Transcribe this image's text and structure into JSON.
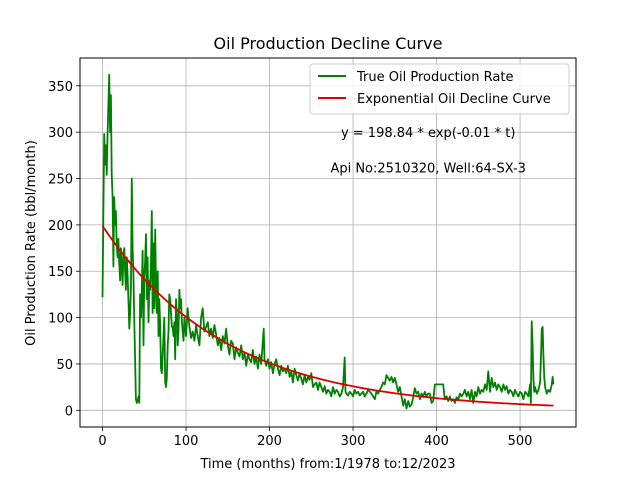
{
  "chart_data": {
    "type": "line",
    "title": "Oil Production Decline Curve",
    "xlabel": "Time (months) from:1/1978 to:12/2023",
    "ylabel": "Oil Production Rate (bbl/month)",
    "xlim": [
      -27,
      567
    ],
    "ylim": [
      -18,
      380
    ],
    "xticks": [
      0,
      100,
      200,
      300,
      400,
      500
    ],
    "yticks": [
      0,
      50,
      100,
      150,
      200,
      250,
      300,
      350
    ],
    "grid": true,
    "legend": "top-right",
    "annotations": [
      {
        "text": "y = 198.84 * exp(-0.01 * t)",
        "x": 390,
        "y": 300
      },
      {
        "text": "Api No:2510320, Well:64-SX-3",
        "x": 390,
        "y": 262
      }
    ],
    "series": [
      {
        "name": "True Oil Production Rate",
        "color": "#008000",
        "kind": "observed",
        "points": [
          [
            0,
            122
          ],
          [
            2,
            298
          ],
          [
            3,
            265
          ],
          [
            4,
            286
          ],
          [
            5,
            254
          ],
          [
            6,
            300
          ],
          [
            7,
            330
          ],
          [
            8,
            362
          ],
          [
            9,
            300
          ],
          [
            10,
            340
          ],
          [
            11,
            255
          ],
          [
            12,
            230
          ],
          [
            13,
            155
          ],
          [
            14,
            230
          ],
          [
            15,
            200
          ],
          [
            16,
            215
          ],
          [
            17,
            178
          ],
          [
            18,
            165
          ],
          [
            19,
            185
          ],
          [
            20,
            160
          ],
          [
            21,
            140
          ],
          [
            22,
            175
          ],
          [
            23,
            155
          ],
          [
            24,
            135
          ],
          [
            25,
            168
          ],
          [
            26,
            175
          ],
          [
            27,
            150
          ],
          [
            28,
            130
          ],
          [
            29,
            165
          ],
          [
            30,
            145
          ],
          [
            31,
            120
          ],
          [
            32,
            88
          ],
          [
            33,
            105
          ],
          [
            34,
            130
          ],
          [
            35,
            250
          ],
          [
            36,
            175
          ],
          [
            37,
            148
          ],
          [
            38,
            95
          ],
          [
            39,
            55
          ],
          [
            40,
            12
          ],
          [
            41,
            8
          ],
          [
            42,
            10
          ],
          [
            43,
            15
          ],
          [
            44,
            8
          ],
          [
            45,
            125
          ],
          [
            46,
            100
          ],
          [
            47,
            130
          ],
          [
            48,
            172
          ],
          [
            49,
            70
          ],
          [
            50,
            145
          ],
          [
            51,
            160
          ],
          [
            52,
            190
          ],
          [
            53,
            120
          ],
          [
            54,
            165
          ],
          [
            55,
            95
          ],
          [
            56,
            140
          ],
          [
            57,
            130
          ],
          [
            58,
            160
          ],
          [
            59,
            215
          ],
          [
            60,
            105
          ],
          [
            61,
            180
          ],
          [
            62,
            110
          ],
          [
            63,
            195
          ],
          [
            64,
            130
          ],
          [
            65,
            105
          ],
          [
            66,
            150
          ],
          [
            67,
            80
          ],
          [
            68,
            120
          ],
          [
            69,
            90
          ],
          [
            70,
            45
          ],
          [
            71,
            40
          ],
          [
            72,
            60
          ],
          [
            73,
            80
          ],
          [
            74,
            100
          ],
          [
            75,
            30
          ],
          [
            76,
            25
          ],
          [
            77,
            35
          ],
          [
            78,
            70
          ],
          [
            79,
            85
          ],
          [
            80,
            125
          ],
          [
            81,
            120
          ],
          [
            82,
            105
          ],
          [
            83,
            90
          ],
          [
            84,
            90
          ],
          [
            85,
            80
          ],
          [
            86,
            95
          ],
          [
            87,
            55
          ],
          [
            88,
            120
          ],
          [
            89,
            105
          ],
          [
            90,
            70
          ],
          [
            91,
            85
          ],
          [
            92,
            130
          ],
          [
            93,
            110
          ],
          [
            94,
            120
          ],
          [
            95,
            95
          ],
          [
            96,
            85
          ],
          [
            97,
            75
          ],
          [
            98,
            100
          ],
          [
            99,
            92
          ],
          [
            100,
            80
          ],
          [
            102,
            110
          ],
          [
            104,
            90
          ],
          [
            106,
            78
          ],
          [
            108,
            85
          ],
          [
            110,
            75
          ],
          [
            112,
            92
          ],
          [
            114,
            80
          ],
          [
            116,
            70
          ],
          [
            118,
            100
          ],
          [
            120,
            110
          ],
          [
            122,
            85
          ],
          [
            124,
            90
          ],
          [
            126,
            95
          ],
          [
            128,
            80
          ],
          [
            130,
            88
          ],
          [
            132,
            78
          ],
          [
            134,
            92
          ],
          [
            136,
            82
          ],
          [
            138,
            70
          ],
          [
            140,
            78
          ],
          [
            142,
            65
          ],
          [
            144,
            80
          ],
          [
            146,
            72
          ],
          [
            148,
            88
          ],
          [
            150,
            70
          ],
          [
            152,
            60
          ],
          [
            154,
            75
          ],
          [
            156,
            72
          ],
          [
            158,
            55
          ],
          [
            160,
            68
          ],
          [
            162,
            62
          ],
          [
            164,
            58
          ],
          [
            166,
            70
          ],
          [
            168,
            55
          ],
          [
            170,
            62
          ],
          [
            172,
            48
          ],
          [
            174,
            60
          ],
          [
            176,
            55
          ],
          [
            178,
            52
          ],
          [
            180,
            65
          ],
          [
            182,
            50
          ],
          [
            184,
            58
          ],
          [
            186,
            45
          ],
          [
            188,
            60
          ],
          [
            190,
            50
          ],
          [
            192,
            75
          ],
          [
            193,
            88
          ],
          [
            194,
            55
          ],
          [
            196,
            48
          ],
          [
            198,
            55
          ],
          [
            200,
            45
          ],
          [
            202,
            52
          ],
          [
            204,
            40
          ],
          [
            206,
            50
          ],
          [
            208,
            55
          ],
          [
            210,
            45
          ],
          [
            212,
            38
          ],
          [
            214,
            48
          ],
          [
            216,
            42
          ],
          [
            218,
            45
          ],
          [
            220,
            40
          ],
          [
            222,
            48
          ],
          [
            224,
            36
          ],
          [
            226,
            42
          ],
          [
            228,
            30
          ],
          [
            230,
            45
          ],
          [
            232,
            38
          ],
          [
            234,
            32
          ],
          [
            236,
            40
          ],
          [
            238,
            34
          ],
          [
            240,
            28
          ],
          [
            242,
            38
          ],
          [
            244,
            30
          ],
          [
            246,
            36
          ],
          [
            248,
            33
          ],
          [
            250,
            40
          ],
          [
            252,
            25
          ],
          [
            254,
            28
          ],
          [
            256,
            30
          ],
          [
            258,
            22
          ],
          [
            260,
            30
          ],
          [
            262,
            25
          ],
          [
            264,
            20
          ],
          [
            266,
            26
          ],
          [
            268,
            18
          ],
          [
            270,
            22
          ],
          [
            272,
            20
          ],
          [
            274,
            15
          ],
          [
            276,
            25
          ],
          [
            278,
            18
          ],
          [
            280,
            22
          ],
          [
            282,
            20
          ],
          [
            284,
            15
          ],
          [
            286,
            18
          ],
          [
            288,
            25
          ],
          [
            290,
            57
          ],
          [
            291,
            20
          ],
          [
            292,
            18
          ],
          [
            294,
            16
          ],
          [
            296,
            20
          ],
          [
            298,
            18
          ],
          [
            300,
            15
          ],
          [
            302,
            22
          ],
          [
            304,
            18
          ],
          [
            306,
            20
          ],
          [
            308,
            16
          ],
          [
            310,
            18
          ],
          [
            312,
            20
          ],
          [
            314,
            15
          ],
          [
            316,
            18
          ],
          [
            318,
            22
          ],
          [
            320,
            20
          ],
          [
            322,
            18
          ],
          [
            324,
            15
          ],
          [
            326,
            12
          ],
          [
            328,
            20
          ],
          [
            330,
            18
          ],
          [
            332,
            22
          ],
          [
            334,
            25
          ],
          [
            336,
            30
          ],
          [
            338,
            28
          ],
          [
            340,
            38
          ],
          [
            342,
            35
          ],
          [
            344,
            32
          ],
          [
            346,
            36
          ],
          [
            348,
            30
          ],
          [
            350,
            35
          ],
          [
            352,
            28
          ],
          [
            354,
            20
          ],
          [
            356,
            25
          ],
          [
            358,
            15
          ],
          [
            360,
            5
          ],
          [
            362,
            12
          ],
          [
            364,
            2
          ],
          [
            366,
            10
          ],
          [
            368,
            4
          ],
          [
            370,
            6
          ],
          [
            372,
            14
          ],
          [
            374,
            24
          ],
          [
            376,
            18
          ],
          [
            378,
            20
          ],
          [
            380,
            12
          ],
          [
            382,
            18
          ],
          [
            384,
            15
          ],
          [
            386,
            20
          ],
          [
            388,
            15
          ],
          [
            390,
            18
          ],
          [
            392,
            18
          ],
          [
            394,
            8
          ],
          [
            396,
            10
          ],
          [
            398,
            28
          ],
          [
            400,
            28
          ],
          [
            402,
            28
          ],
          [
            404,
            28
          ],
          [
            406,
            28
          ],
          [
            408,
            28
          ],
          [
            409,
            18
          ],
          [
            410,
            12
          ],
          [
            412,
            15
          ],
          [
            414,
            10
          ],
          [
            416,
            15
          ],
          [
            418,
            10
          ],
          [
            420,
            12
          ],
          [
            422,
            8
          ],
          [
            424,
            14
          ],
          [
            426,
            12
          ],
          [
            428,
            18
          ],
          [
            430,
            15
          ],
          [
            432,
            18
          ],
          [
            434,
            22
          ],
          [
            436,
            15
          ],
          [
            438,
            20
          ],
          [
            440,
            12
          ],
          [
            442,
            22
          ],
          [
            444,
            8
          ],
          [
            446,
            20
          ],
          [
            448,
            15
          ],
          [
            450,
            25
          ],
          [
            452,
            18
          ],
          [
            454,
            22
          ],
          [
            456,
            20
          ],
          [
            458,
            28
          ],
          [
            460,
            22
          ],
          [
            462,
            42
          ],
          [
            464,
            20
          ],
          [
            466,
            35
          ],
          [
            468,
            25
          ],
          [
            470,
            30
          ],
          [
            472,
            22
          ],
          [
            474,
            28
          ],
          [
            476,
            25
          ],
          [
            478,
            20
          ],
          [
            480,
            28
          ],
          [
            482,
            22
          ],
          [
            484,
            26
          ],
          [
            486,
            18
          ],
          [
            488,
            22
          ],
          [
            490,
            20
          ],
          [
            492,
            15
          ],
          [
            494,
            22
          ],
          [
            496,
            18
          ],
          [
            498,
            15
          ],
          [
            500,
            20
          ],
          [
            502,
            18
          ],
          [
            504,
            12
          ],
          [
            506,
            20
          ],
          [
            508,
            18
          ],
          [
            510,
            15
          ],
          [
            512,
            28
          ],
          [
            513,
            8
          ],
          [
            514,
            96
          ],
          [
            515,
            70
          ],
          [
            516,
            35
          ],
          [
            517,
            20
          ],
          [
            518,
            25
          ],
          [
            520,
            18
          ],
          [
            522,
            22
          ],
          [
            524,
            30
          ],
          [
            525,
            55
          ],
          [
            526,
            88
          ],
          [
            527,
            90
          ],
          [
            528,
            60
          ],
          [
            529,
            35
          ],
          [
            530,
            25
          ],
          [
            532,
            18
          ],
          [
            534,
            22
          ],
          [
            536,
            20
          ],
          [
            538,
            28
          ],
          [
            539,
            36
          ],
          [
            540,
            28
          ]
        ]
      },
      {
        "name": "Exponential Oil Decline Curve",
        "color": "#dd0000",
        "kind": "model",
        "a": 198.84,
        "b": 0.0068,
        "t_range": [
          0,
          540
        ]
      }
    ]
  }
}
